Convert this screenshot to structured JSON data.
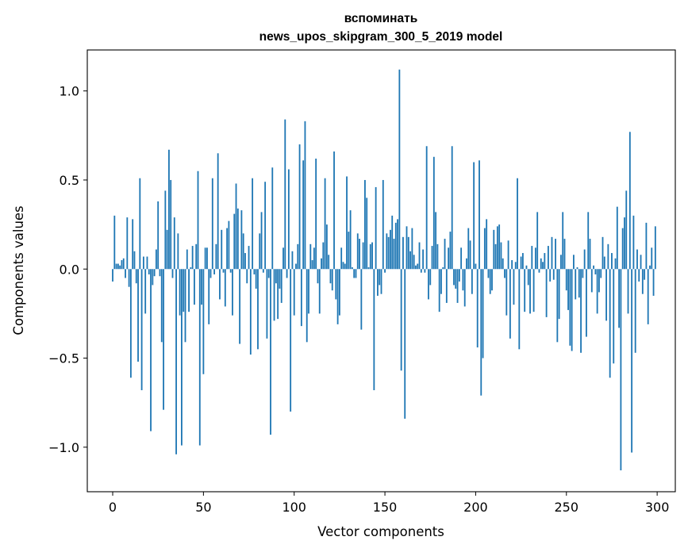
{
  "chart_data": {
    "type": "bar",
    "title": "вспоминать",
    "subtitle": "news_upos_skipgram_300_5_2019 model",
    "xlabel": "Vector components",
    "ylabel": "Components values",
    "xlim": [
      -14,
      310
    ],
    "ylim": [
      -1.25,
      1.23
    ],
    "xticks": [
      0,
      50,
      100,
      150,
      200,
      250,
      300
    ],
    "yticks": [
      -1.0,
      -0.5,
      0.0,
      0.5,
      1.0
    ],
    "ytick_labels": [
      "−1.0",
      "−0.5",
      "0.0",
      "0.5",
      "1.0"
    ],
    "grid": false,
    "bar_color": "#1f77b4",
    "values": [
      -0.07,
      0.3,
      0.03,
      0.03,
      0.02,
      0.05,
      0.06,
      -0.05,
      0.29,
      -0.1,
      -0.61,
      0.28,
      0.1,
      -0.08,
      -0.52,
      0.51,
      -0.68,
      0.07,
      -0.25,
      0.07,
      -0.03,
      -0.91,
      -0.09,
      -0.04,
      0.11,
      0.38,
      -0.04,
      -0.41,
      -0.79,
      0.44,
      0.22,
      0.67,
      0.5,
      -0.05,
      0.29,
      -1.04,
      0.2,
      -0.26,
      -0.99,
      -0.24,
      -0.41,
      0.11,
      -0.24,
      0.01,
      0.13,
      -0.2,
      0.14,
      0.55,
      -0.99,
      -0.2,
      -0.59,
      0.12,
      0.12,
      -0.31,
      -0.05,
      0.51,
      -0.03,
      0.14,
      0.65,
      -0.17,
      0.22,
      -0.02,
      -0.21,
      0.23,
      0.27,
      -0.02,
      -0.26,
      0.31,
      0.48,
      0.34,
      -0.42,
      0.33,
      0.2,
      0.09,
      -0.08,
      0.13,
      -0.48,
      0.51,
      -0.03,
      -0.11,
      -0.45,
      0.2,
      0.32,
      -0.02,
      0.49,
      -0.39,
      -0.05,
      -0.93,
      0.57,
      -0.29,
      -0.08,
      -0.28,
      -0.11,
      -0.19,
      0.12,
      0.84,
      -0.05,
      0.56,
      -0.8,
      0.1,
      -0.26,
      0.03,
      0.14,
      0.7,
      -0.32,
      0.61,
      0.83,
      -0.41,
      -0.25,
      0.14,
      0.05,
      0.12,
      0.62,
      -0.08,
      -0.25,
      0.06,
      0.15,
      0.51,
      0.25,
      0.08,
      -0.08,
      -0.12,
      0.66,
      -0.17,
      -0.31,
      -0.26,
      0.12,
      0.04,
      0.03,
      0.52,
      0.21,
      0.33,
      0.01,
      -0.05,
      -0.05,
      0.2,
      0.17,
      -0.34,
      0.15,
      0.5,
      0.4,
      0.01,
      0.14,
      0.15,
      -0.68,
      0.46,
      -0.15,
      -0.09,
      -0.14,
      0.5,
      -0.02,
      0.2,
      0.18,
      0.22,
      0.3,
      0.17,
      0.26,
      0.28,
      1.12,
      -0.57,
      0.18,
      -0.84,
      0.24,
      0.18,
      0.1,
      0.23,
      0.08,
      0.02,
      0.03,
      0.15,
      -0.02,
      0.11,
      -0.02,
      0.69,
      -0.17,
      -0.09,
      0.13,
      0.63,
      0.32,
      0.14,
      -0.24,
      -0.14,
      0.01,
      0.17,
      -0.19,
      0.12,
      0.21,
      0.69,
      -0.09,
      -0.11,
      -0.19,
      -0.07,
      0.12,
      -0.12,
      -0.21,
      0.06,
      0.23,
      0.16,
      -0.14,
      0.6,
      0.03,
      -0.44,
      0.61,
      -0.71,
      -0.5,
      0.23,
      0.28,
      -0.05,
      -0.14,
      -0.12,
      0.22,
      0.14,
      0.24,
      0.25,
      0.15,
      0.06,
      -0.05,
      -0.26,
      0.16,
      -0.39,
      0.05,
      -0.2,
      0.04,
      0.51,
      -0.45,
      0.07,
      0.09,
      -0.24,
      0.02,
      -0.09,
      -0.25,
      0.13,
      -0.24,
      0.12,
      0.32,
      -0.02,
      0.06,
      0.04,
      0.09,
      -0.27,
      0.13,
      -0.07,
      0.18,
      -0.06,
      0.17,
      -0.41,
      -0.28,
      0.08,
      0.32,
      0.17,
      -0.12,
      -0.23,
      -0.43,
      -0.46,
      0.08,
      -0.17,
      0.01,
      -0.16,
      -0.47,
      -0.05,
      0.11,
      -0.38,
      0.32,
      0.17,
      -0.13,
      0.02,
      -0.03,
      -0.25,
      -0.13,
      -0.05,
      0.18,
      0.07,
      -0.29,
      0.14,
      -0.61,
      0.09,
      -0.53,
      0.06,
      0.35,
      -0.33,
      -1.13,
      0.23,
      0.29,
      0.44,
      -0.25,
      0.77,
      -1.03,
      0.3,
      -0.47,
      0.11,
      -0.07,
      0.08,
      -0.14,
      -0.06,
      0.26,
      -0.31,
      0.02,
      0.12,
      -0.15,
      0.24
    ]
  }
}
